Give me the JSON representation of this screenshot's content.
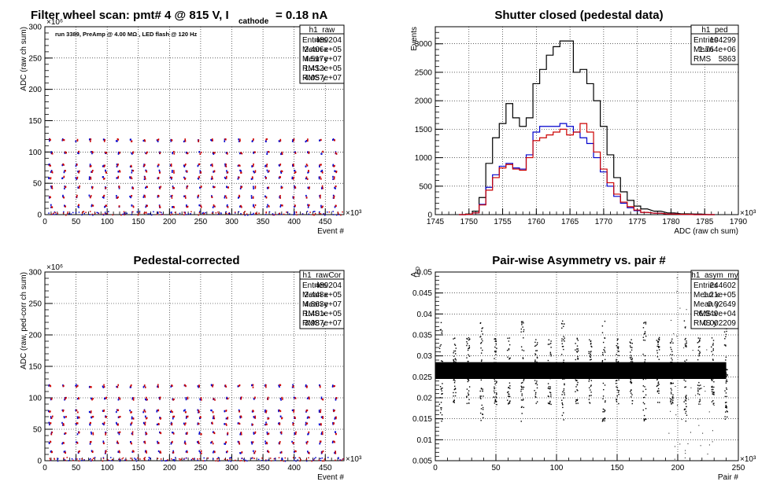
{
  "chart_data": [
    {
      "type": "scatter",
      "title_main": "Filter wheel scan: pmt#   4 @   815 V, I",
      "title_sub": "cathode",
      "title_tail": "= 0.18 nA",
      "annotation": "run 3389, PreAmp @ 4.00 MΩ , LED flash @  120 Hz",
      "xlabel": "Event #",
      "ylabel": "ADC (raw ch sum)",
      "x_exp": "×10³",
      "y_exp": "×10⁶",
      "xlim": [
        0,
        480
      ],
      "ylim": [
        0,
        300
      ],
      "xticks": [
        "0",
        "50",
        "100",
        "150",
        "200",
        "250",
        "300",
        "350",
        "400",
        "450"
      ],
      "yticks": [
        "0",
        "50",
        "100",
        "150",
        "200",
        "250",
        "300"
      ],
      "grid": true,
      "stats": {
        "name": "h1_raw",
        "rows": [
          [
            "Entries",
            "489204"
          ],
          [
            "Mean x",
            "2.406e+05"
          ],
          [
            "Mean y",
            "4.517e+07"
          ],
          [
            "RMS x",
            "1.412e+05"
          ],
          [
            "RMS y",
            "4.057e+07"
          ]
        ]
      },
      "x": [
        0,
        480
      ],
      "y": [
        0,
        125
      ],
      "series": [
        {
          "color": "#0000cc"
        },
        {
          "color": "#cc0000"
        }
      ]
    },
    {
      "type": "line",
      "title": "Shutter closed (pedestal data)",
      "xlabel": "ADC (raw ch sum)",
      "ylabel": "Events",
      "x_exp": "×10³",
      "xlim": [
        1745,
        1790
      ],
      "ylim": [
        0,
        3300
      ],
      "xticks": [
        "1745",
        "1750",
        "1755",
        "1760",
        "1765",
        "1770",
        "1775",
        "1780",
        "1785",
        "1790"
      ],
      "yticks": [
        "0",
        "500",
        "1000",
        "1500",
        "2000",
        "2500",
        "3000"
      ],
      "grid": true,
      "stats": {
        "name": "h1_ped",
        "rows": [
          [
            "Entries",
            "104299"
          ],
          [
            "Mean",
            "1.764e+06"
          ],
          [
            "RMS",
            "5863"
          ]
        ]
      },
      "x": [
        1749,
        1750,
        1751,
        1752,
        1753,
        1754,
        1755,
        1756,
        1757,
        1758,
        1759,
        1760,
        1761,
        1762,
        1763,
        1764,
        1765,
        1766,
        1767,
        1768,
        1769,
        1770,
        1771,
        1772,
        1773,
        1774,
        1775,
        1776,
        1778,
        1780,
        1782,
        1784,
        1786
      ],
      "series": [
        {
          "color": "#000000",
          "values": [
            0,
            10,
            60,
            300,
            900,
            1350,
            1600,
            1950,
            1700,
            1550,
            1700,
            2300,
            2550,
            2800,
            2950,
            3050,
            3050,
            2500,
            2550,
            2300,
            2000,
            1550,
            1050,
            650,
            400,
            250,
            150,
            100,
            60,
            30,
            15,
            10,
            0
          ]
        },
        {
          "color": "#0000cc",
          "values": [
            0,
            5,
            30,
            180,
            480,
            700,
            850,
            900,
            820,
            800,
            1050,
            1450,
            1550,
            1550,
            1550,
            1600,
            1550,
            1450,
            1350,
            1250,
            1000,
            750,
            500,
            320,
            200,
            120,
            70,
            40,
            25,
            10,
            5,
            0,
            0
          ]
        },
        {
          "color": "#cc0000",
          "values": [
            0,
            5,
            30,
            170,
            430,
            650,
            820,
            880,
            800,
            780,
            1000,
            1300,
            1350,
            1400,
            1450,
            1500,
            1400,
            1450,
            1600,
            1450,
            1100,
            800,
            560,
            360,
            220,
            140,
            80,
            40,
            25,
            10,
            5,
            0,
            0
          ]
        }
      ]
    },
    {
      "type": "scatter",
      "title": "Pedestal-corrected",
      "xlabel": "Event #",
      "ylabel": "ADC (raw, ped-corr ch sum)",
      "x_exp": "×10³",
      "y_exp": "×10⁶",
      "xlim": [
        0,
        480
      ],
      "ylim": [
        0,
        300
      ],
      "xticks": [
        "0",
        "50",
        "100",
        "150",
        "200",
        "250",
        "300",
        "350",
        "400",
        "450"
      ],
      "yticks": [
        "0",
        "50",
        "100",
        "150",
        "200",
        "250",
        "300"
      ],
      "grid": true,
      "stats": {
        "name": "h1_rawCor",
        "rows": [
          [
            "Entries",
            "489204"
          ],
          [
            "Mean x",
            "2.448e+05"
          ],
          [
            "Mean y",
            "4.863e+07"
          ],
          [
            "RMS x",
            "1.401e+05"
          ],
          [
            "RMS y",
            "3.987e+07"
          ]
        ]
      },
      "x": [
        0,
        480
      ],
      "y": [
        0,
        125
      ],
      "series": [
        {
          "color": "#0000cc"
        },
        {
          "color": "#cc0000"
        }
      ]
    },
    {
      "type": "scatter",
      "title": "Pair-wise Asymmetry vs. pair #",
      "xlabel": "Pair #",
      "ylabel": "A",
      "ylabel_sub": "LED",
      "x_exp": "×10³",
      "xlim": [
        0,
        250
      ],
      "ylim": [
        0.005,
        0.05
      ],
      "xticks": [
        "0",
        "50",
        "100",
        "150",
        "200",
        "250"
      ],
      "yticks": [
        "0.005",
        "0.01",
        "0.015",
        "0.02",
        "0.025",
        "0.03",
        "0.035",
        "0.04",
        "0.045",
        "0.05"
      ],
      "grid": true,
      "stats": {
        "name": "h1_asym_my",
        "rows": [
          [
            "Entries",
            "244602"
          ],
          [
            "Mean x",
            "1.21e+05"
          ],
          [
            "Mean y",
            "0.02649"
          ],
          [
            "RMS x",
            "6.949e+04"
          ],
          [
            "RMS y",
            "0.002209"
          ]
        ]
      },
      "x": [
        0,
        240
      ],
      "y": [
        0.0265
      ],
      "series": [
        {
          "color": "#000000"
        }
      ]
    }
  ]
}
